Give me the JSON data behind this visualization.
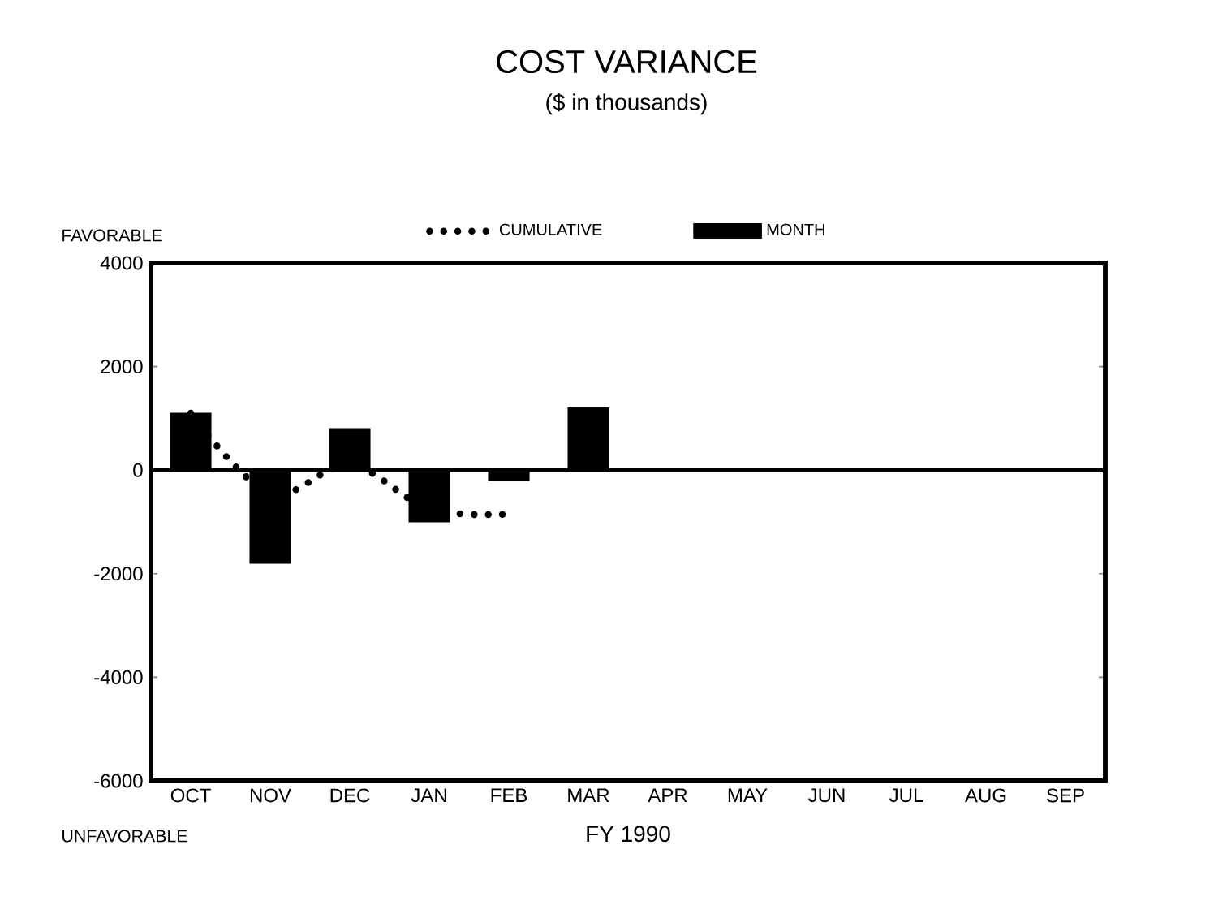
{
  "chart_data": {
    "type": "bar",
    "title": "COST VARIANCE",
    "subtitle": "($ in thousands)",
    "xlabel": "FY 1990",
    "annotations": [
      "FAVORABLE",
      "UNFAVORABLE"
    ],
    "categories": [
      "OCT",
      "NOV",
      "DEC",
      "JAN",
      "FEB",
      "MAR",
      "APR",
      "MAY",
      "JUN",
      "JUL",
      "AUG",
      "SEP"
    ],
    "series": [
      {
        "name": "CUMULATIVE",
        "type": "line",
        "color": "#000000",
        "line_style": "dotted",
        "values": [
          1100,
          -450,
          100,
          -750,
          -850,
          null,
          null,
          null,
          null,
          null,
          null,
          null
        ]
      },
      {
        "name": "MONTH",
        "color": "#000000",
        "values": [
          1100,
          -1800,
          800,
          -1000,
          -200,
          1200,
          null,
          null,
          null,
          null,
          null,
          null
        ]
      }
    ],
    "ylim": [
      -6000,
      4000
    ],
    "yticks": [
      -6000,
      -4000,
      -2000,
      0,
      2000,
      4000
    ],
    "ref_lines": [
      {
        "axis": "y",
        "value": 0
      }
    ],
    "grid": false,
    "legend": "top"
  }
}
